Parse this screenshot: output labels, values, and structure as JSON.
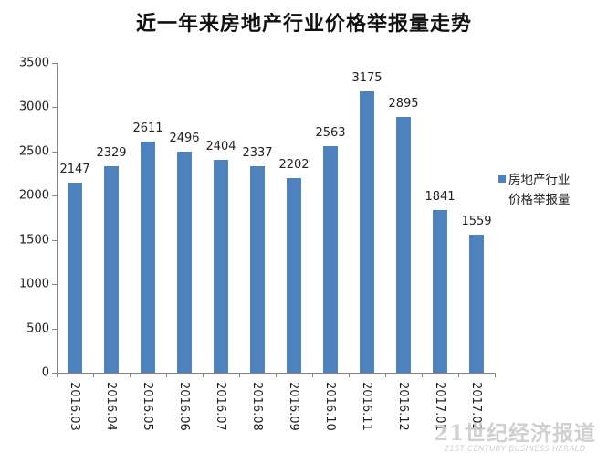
{
  "chart_data": {
    "type": "bar",
    "title": "近一年来房地产行业价格举报量走势",
    "xlabel": "",
    "ylabel": "",
    "categories": [
      "2016.03",
      "2016.04",
      "2016.05",
      "2016.06",
      "2016.07",
      "2016.08",
      "2016.09",
      "2016.10",
      "2016.11",
      "2016.12",
      "2017.01",
      "2017.02"
    ],
    "series": [
      {
        "name": "房地产行业价格举报量",
        "color": "#4f81bd",
        "values": [
          2147,
          2329,
          2611,
          2496,
          2404,
          2337,
          2202,
          2563,
          3175,
          2895,
          1841,
          1559
        ]
      }
    ],
    "ylim": [
      0,
      3500
    ],
    "yticks": [
      0,
      500,
      1000,
      1500,
      2000,
      2500,
      3000,
      3500
    ],
    "grid": false,
    "legend_position": "right",
    "data_labels": true
  },
  "legend": {
    "line1": "房地产行业",
    "line2": "价格举报量"
  },
  "watermark": {
    "cn": "21世纪经济报道",
    "en": "21ST CENTURY BUSINESS HERALD"
  }
}
